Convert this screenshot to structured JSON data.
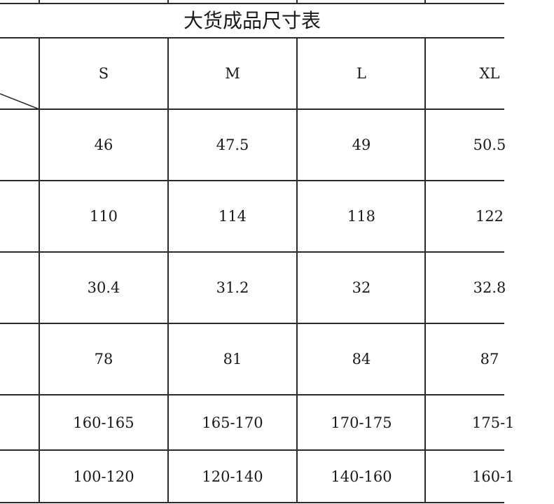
{
  "title": "大货成品尺寸表",
  "table": {
    "headers": [
      "S",
      "M",
      "L",
      "XL"
    ],
    "rows": [
      [
        "46",
        "47.5",
        "49",
        "50.5"
      ],
      [
        "110",
        "114",
        "118",
        "122"
      ],
      [
        "30.4",
        "31.2",
        "32",
        "32.8"
      ],
      [
        "78",
        "81",
        "84",
        "87"
      ],
      [
        "160-165",
        "165-170",
        "170-175",
        "175-1"
      ],
      [
        "100-120",
        "120-140",
        "140-160",
        "160-1"
      ]
    ]
  }
}
